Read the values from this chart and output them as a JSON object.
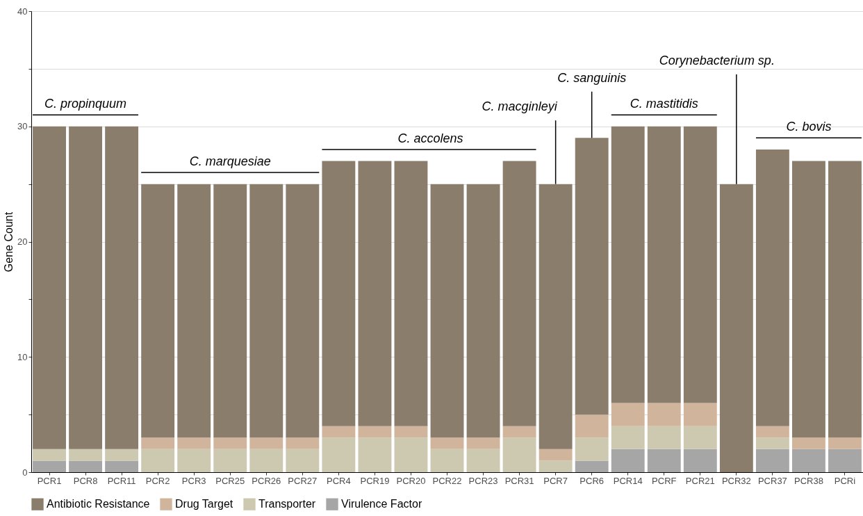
{
  "chart_data": {
    "type": "bar",
    "stacked": true,
    "ylabel": "Gene Count",
    "categories": [
      "PCR1",
      "PCR8",
      "PCR11",
      "PCR2",
      "PCR3",
      "PCR25",
      "PCR26",
      "PCR27",
      "PCR4",
      "PCR19",
      "PCR20",
      "PCR22",
      "PCR23",
      "PCR31",
      "PCR7",
      "PCR6",
      "PCR14",
      "PCRF",
      "PCR21",
      "PCR32",
      "PCR37",
      "PCR38",
      "PCRi"
    ],
    "series": [
      {
        "name": "Virulence Factor",
        "color": "#a6a6a6",
        "values": [
          1,
          1,
          1,
          0,
          0,
          0,
          0,
          0,
          0,
          0,
          0,
          0,
          0,
          0,
          0,
          1,
          2,
          2,
          2,
          0,
          2,
          2,
          2
        ]
      },
      {
        "name": "Transporter",
        "color": "#cdc8b0",
        "values": [
          1,
          1,
          1,
          2,
          2,
          2,
          2,
          2,
          3,
          3,
          3,
          2,
          2,
          3,
          1,
          2,
          2,
          2,
          2,
          0,
          1,
          0,
          0
        ]
      },
      {
        "name": "Drug Target",
        "color": "#d0b59c",
        "values": [
          0,
          0,
          0,
          1,
          1,
          1,
          1,
          1,
          1,
          1,
          1,
          1,
          1,
          1,
          1,
          2,
          2,
          2,
          2,
          0,
          1,
          1,
          1
        ]
      },
      {
        "name": "Antibiotic Resistance",
        "color": "#8a7d6b",
        "values": [
          28,
          28,
          28,
          22,
          22,
          22,
          22,
          22,
          23,
          23,
          23,
          22,
          22,
          23,
          23,
          24,
          24,
          24,
          24,
          25,
          24,
          24,
          24
        ]
      }
    ],
    "ylim": [
      0,
      40
    ],
    "yticks": [
      0,
      {
        "value": 5,
        "label": null
      },
      10,
      {
        "value": 15,
        "label": null
      },
      20,
      {
        "value": 25,
        "label": null
      },
      30,
      {
        "value": 35,
        "label": null
      },
      40
    ],
    "grid": "y",
    "legend": "bottom",
    "annotations": [
      "C. propinquum",
      "C. marquesiae",
      "C. accolens",
      {
        "text": "C. macginleyi",
        "x": "PCR7",
        "y": 25
      },
      {
        "text": "C. sanguinis",
        "x": "PCR6",
        "y": 29
      },
      "C. mastitidis",
      {
        "text": "Corynebacterium sp.",
        "x": "PCR32",
        "y": 25
      },
      "C. bovis"
    ]
  }
}
